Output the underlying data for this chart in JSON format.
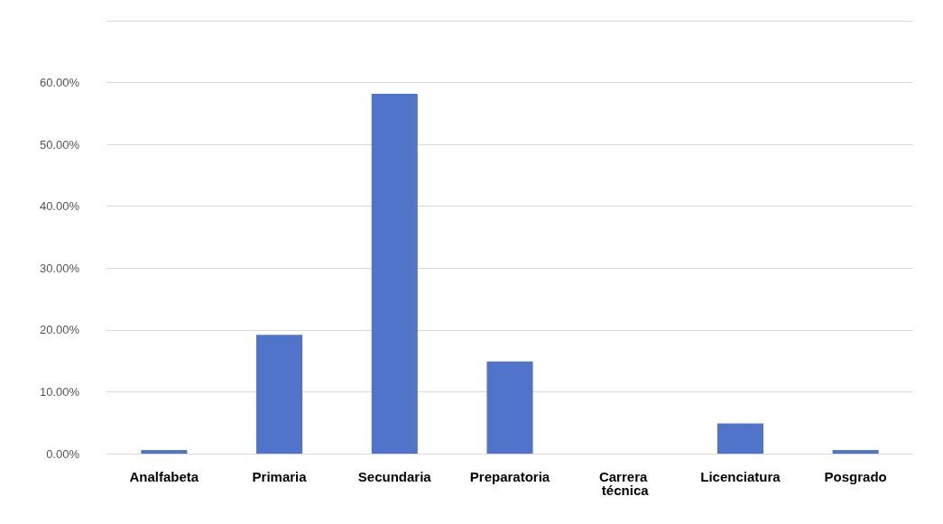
{
  "chart_data": {
    "type": "bar",
    "categories": [
      "Analfabeta",
      "Primaria",
      "Secundaria",
      "Preparatoria",
      "Carrera técnica",
      "Licenciatura",
      "Posgrado"
    ],
    "values": [
      0.6,
      19.2,
      58.2,
      14.9,
      0,
      4.9,
      0.6
    ],
    "color": "#4f74c9",
    "ylim": [
      0,
      70
    ],
    "yticks": [
      {
        "value": 0,
        "label": "0.00%"
      },
      {
        "value": 10,
        "label": "10.00%"
      },
      {
        "value": 20,
        "label": "20.00%"
      },
      {
        "value": 30,
        "label": "30.00%"
      },
      {
        "value": 40,
        "label": "40.00%"
      },
      {
        "value": 50,
        "label": "50.00%"
      },
      {
        "value": 60,
        "label": "60.00%"
      },
      {
        "value": 70,
        "label": null
      }
    ],
    "grid": true
  }
}
